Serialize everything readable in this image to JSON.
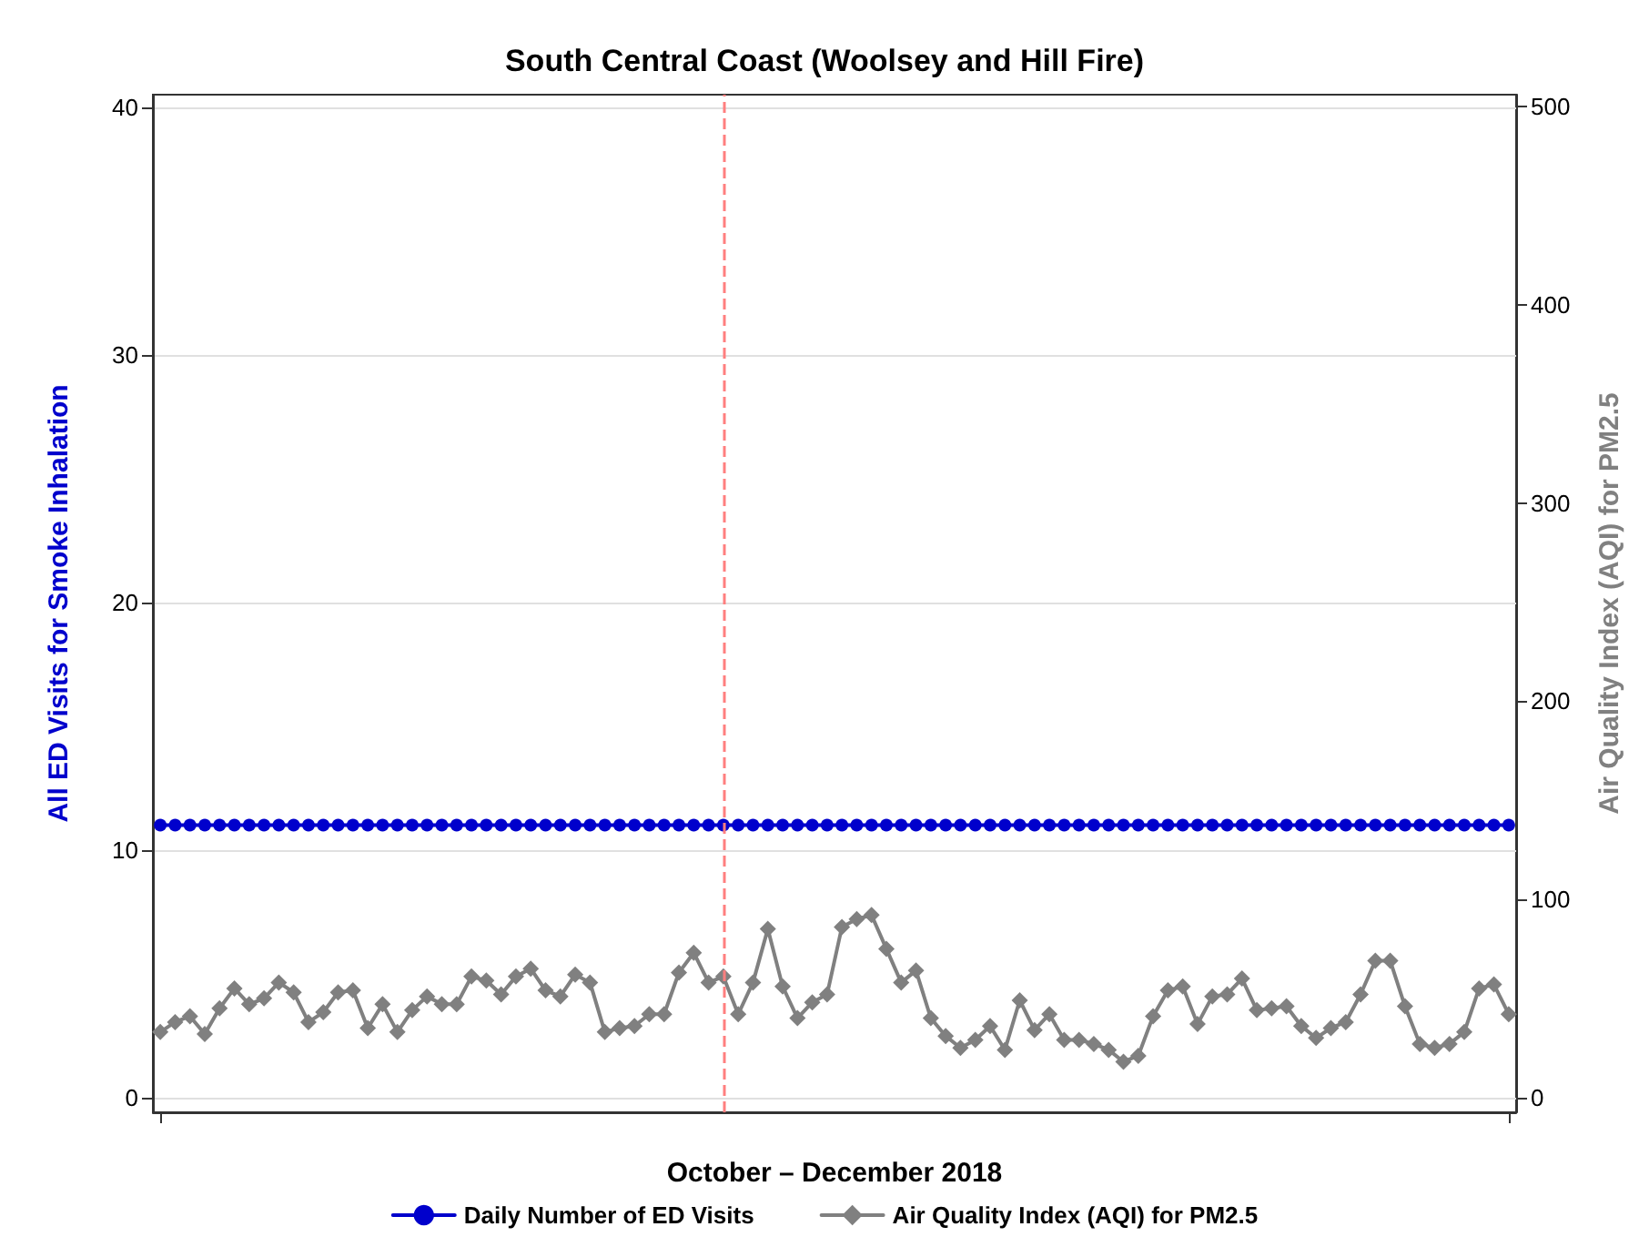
{
  "chart_data": {
    "type": "line",
    "title": "South Central Coast (Woolsey and Hill Fire)",
    "xlabel": "October – December 2018",
    "ylabel": "All ED Visits for Smoke Inhalation",
    "y2label": "Air Quality Index (AQI) for PM2.5",
    "categories": [
      null,
      null,
      null,
      null,
      null,
      null,
      null,
      null,
      null,
      null,
      null,
      null,
      null,
      null,
      null,
      null,
      null,
      null,
      null,
      null,
      null,
      null,
      null,
      null,
      null,
      null,
      null,
      null,
      null,
      null,
      null,
      null,
      null,
      null,
      null,
      null,
      null,
      null,
      null,
      null,
      null,
      null,
      null,
      null,
      null,
      null,
      null,
      null,
      null,
      null,
      null,
      null,
      null,
      null,
      null,
      null,
      null,
      null,
      null,
      null,
      null,
      null,
      null,
      null,
      null,
      null,
      null,
      null,
      null,
      null,
      null,
      null,
      null,
      null,
      null,
      null,
      null,
      null,
      null,
      null,
      null,
      null,
      null,
      null,
      null,
      null,
      null,
      null,
      null,
      null,
      null,
      null
    ],
    "series": [
      {
        "name": "Daily Number of ED Visits",
        "color": "#0000cc",
        "marker": "circle",
        "values": [
          11,
          11,
          11,
          11,
          11,
          11,
          11,
          11,
          11,
          11,
          11,
          11,
          11,
          11,
          11,
          11,
          11,
          11,
          11,
          11,
          11,
          11,
          11,
          11,
          11,
          11,
          11,
          11,
          11,
          11,
          11,
          11,
          11,
          11,
          11,
          11,
          11,
          11,
          11,
          11,
          11,
          11,
          11,
          11,
          11,
          11,
          11,
          11,
          11,
          11,
          11,
          11,
          11,
          11,
          11,
          11,
          11,
          11,
          11,
          11,
          11,
          11,
          11,
          11,
          11,
          11,
          11,
          11,
          11,
          11,
          11,
          11,
          11,
          11,
          11,
          11,
          11,
          11,
          11,
          11,
          11,
          11,
          11,
          11,
          11,
          11,
          11,
          11,
          11,
          11,
          11,
          11
        ]
      },
      {
        "name": "Air Quality Index (AQI) for PM2.5",
        "color": "#808080",
        "marker": "diamond",
        "axis": "y2",
        "values": [
          33,
          38,
          41,
          32,
          45,
          55,
          47,
          50,
          58,
          53,
          38,
          43,
          53,
          54,
          35,
          47,
          33,
          44,
          51,
          47,
          47,
          61,
          59,
          52,
          61,
          65,
          54,
          51,
          62,
          58,
          33,
          35,
          36,
          42,
          42,
          63,
          73,
          58,
          61,
          42,
          58,
          85,
          56,
          40,
          48,
          52,
          86,
          90,
          92,
          75,
          58,
          64,
          40,
          31,
          25,
          29,
          36,
          24,
          49,
          34,
          42,
          29,
          29,
          27,
          24,
          18,
          21,
          41,
          54,
          56,
          37,
          51,
          52,
          60,
          44,
          45,
          46,
          36,
          30,
          35,
          38,
          52,
          69,
          69,
          46,
          27,
          25,
          27,
          33,
          55,
          57,
          42
        ]
      }
    ],
    "ylim": [
      -0.6,
      40.5
    ],
    "yticks": [
      0,
      10,
      20,
      30,
      40
    ],
    "y2lim": [
      -7.5,
      506
    ],
    "y2ticks": [
      0,
      100,
      200,
      300,
      400,
      500
    ],
    "tick_labels": "y",
    "grid": "y",
    "legend": "bottom",
    "line_style": "solid"
  }
}
